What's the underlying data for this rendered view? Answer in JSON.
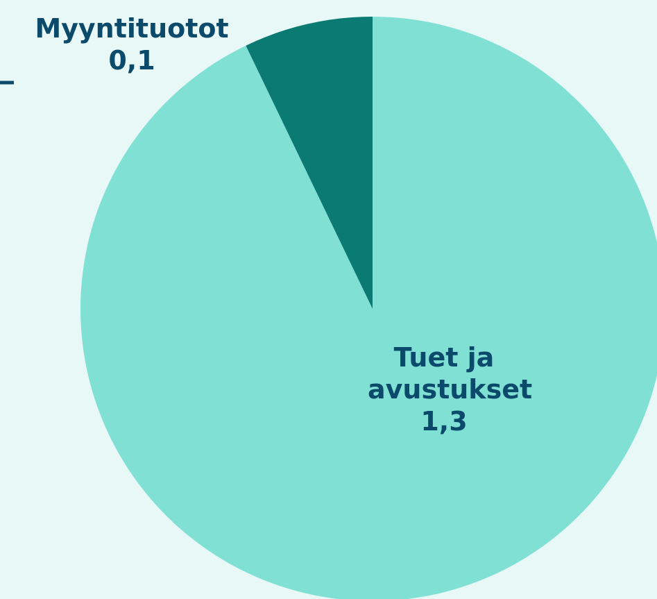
{
  "chart_data": {
    "type": "pie",
    "categories": [
      "Tuet ja avustukset",
      "Myyntituotot"
    ],
    "values": [
      1.3,
      0.1
    ],
    "value_labels": [
      "1,3",
      "0,1"
    ],
    "colors": [
      "#80e0d4",
      "#0b7a72"
    ]
  }
}
